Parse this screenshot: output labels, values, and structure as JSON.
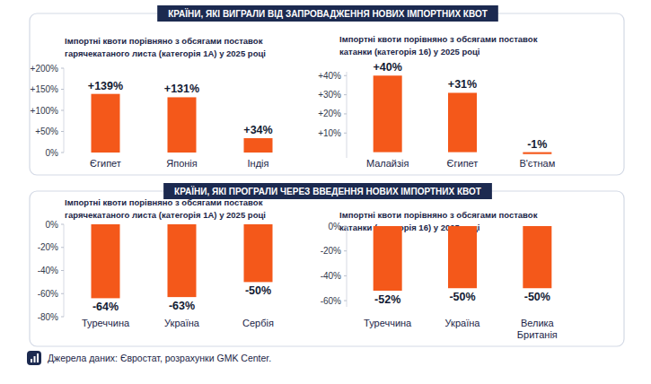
{
  "panel_titles": [
    "КРАЇНИ, ЯКІ ВИГРАЛИ ВІД ЗАПРОВАДЖЕННЯ НОВИХ ІМПОРТНИХ КВОТ",
    "КРАЇНИ, ЯКІ ПРОГРАЛИ ЧЕРЕЗ ВВЕДЕННЯ НОВИХ ІМПОРТНИХ КВОТ"
  ],
  "source": "Джерела даних: Євростат, розрахунки GMK Center.",
  "chart_data": [
    {
      "type": "bar",
      "title": "Імпортні квоти порівняно з обсягами поставок гарячекатаного листа (категорія 1А) у 2025 році",
      "categories": [
        "Єгипет",
        "Японія",
        "Індія"
      ],
      "values": [
        139,
        131,
        34
      ],
      "value_labels": [
        "+139%",
        "+131%",
        "+34%"
      ],
      "data_labels": true,
      "color": "#f4581a",
      "grid": false,
      "ylim": [
        0,
        200
      ],
      "yticks": [
        {
          "value": 0,
          "label": "0%"
        },
        {
          "value": 50,
          "label": "+50%"
        },
        {
          "value": 100,
          "label": "+100%"
        },
        {
          "value": 150,
          "label": "+150%"
        },
        {
          "value": 200,
          "label": "+200%"
        }
      ]
    },
    {
      "type": "bar",
      "title": "Імпортні квоти порівняно з обсягами поставок катанки (категорія 16) у 2025 році",
      "categories": [
        "Малайзія",
        "Єгипет",
        "В'єтнам"
      ],
      "values": [
        40,
        31,
        -1
      ],
      "value_labels": [
        "+40%",
        "+31%",
        "-1%"
      ],
      "data_labels": true,
      "color": "#f4581a",
      "grid": false,
      "ylim": [
        -3,
        42
      ],
      "yticks": [
        {
          "value": 10,
          "label": "+10%"
        },
        {
          "value": 20,
          "label": "+20%"
        },
        {
          "value": 30,
          "label": "+30%"
        },
        {
          "value": 40,
          "label": "+40%"
        }
      ]
    },
    {
      "type": "bar",
      "title": "Імпортні квоти порівняно з обсягами поставок гарячекатаного листа (категорія 1А) у 2025 році",
      "categories": [
        "Туреччина",
        "Україна",
        "Сербія"
      ],
      "values": [
        -64,
        -63,
        -50
      ],
      "value_labels": [
        "-64%",
        "-63%",
        "-50%"
      ],
      "data_labels": true,
      "color": "#f4581a",
      "grid": false,
      "ylim": [
        -80,
        0
      ],
      "yticks": [
        {
          "value": 0,
          "label": "0%"
        },
        {
          "value": -20,
          "label": "-20%"
        },
        {
          "value": -40,
          "label": "-40%"
        },
        {
          "value": -60,
          "label": "-60%"
        },
        {
          "value": -80,
          "label": "-80%"
        }
      ]
    },
    {
      "type": "bar",
      "title": "Імпортні квоти порівняно з обсягами поставок катанки (категорія 16) у 2025 році",
      "categories": [
        "Туреччина",
        "Україна",
        "Велика Британія"
      ],
      "values": [
        -52,
        -50,
        -50
      ],
      "value_labels": [
        "-52%",
        "-50%",
        "-50%"
      ],
      "data_labels": true,
      "color": "#f4581a",
      "grid": false,
      "ylim": [
        -65,
        0
      ],
      "yticks": [
        {
          "value": 0,
          "label": "0%"
        },
        {
          "value": -20,
          "label": "-20%"
        },
        {
          "value": -40,
          "label": "-40%"
        },
        {
          "value": -60,
          "label": "-60%"
        }
      ]
    }
  ]
}
